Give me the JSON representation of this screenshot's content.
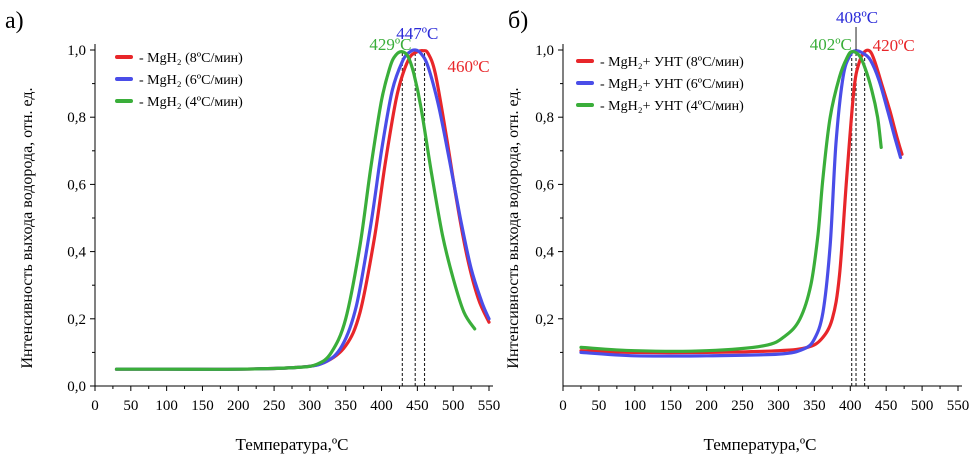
{
  "chart_data": [
    {
      "panel_label": "а)",
      "type": "line",
      "xlabel": "Температура,ºС",
      "ylabel": "Интенсивность выхода водорода, отн. ед.",
      "xlim": [
        0,
        550
      ],
      "ylim": [
        0,
        1.0
      ],
      "xticks": [
        "0",
        "50",
        "100",
        "150",
        "200",
        "250",
        "300",
        "350",
        "400",
        "450",
        "500",
        "550"
      ],
      "yticks": [
        "0,0",
        "0,2",
        "0,4",
        "0,6",
        "0,8",
        "1,0"
      ],
      "x_tick_values": [
        0,
        50,
        100,
        150,
        200,
        250,
        300,
        350,
        400,
        450,
        500,
        550
      ],
      "y_tick_values": [
        0,
        0.2,
        0.4,
        0.6,
        0.8,
        1.0
      ],
      "legend_position": "top-left",
      "series": [
        {
          "name": "-  MgH₂  (8ºС/мин)",
          "color": "#e8262a",
          "x": [
            30,
            100,
            200,
            280,
            320,
            350,
            370,
            390,
            405,
            420,
            430,
            440,
            450,
            458,
            465,
            475,
            490,
            505,
            520,
            535,
            550
          ],
          "y": [
            0.05,
            0.05,
            0.05,
            0.055,
            0.07,
            0.12,
            0.22,
            0.44,
            0.66,
            0.85,
            0.93,
            0.98,
            0.995,
            0.998,
            0.99,
            0.93,
            0.75,
            0.55,
            0.38,
            0.26,
            0.19
          ]
        },
        {
          "name": "-  MgH₂  (6ºС/мин)",
          "color": "#4a4de8",
          "x": [
            30,
            100,
            200,
            280,
            320,
            345,
            365,
            385,
            400,
            415,
            430,
            440,
            447,
            455,
            465,
            480,
            495,
            510,
            525,
            540,
            550
          ],
          "y": [
            0.05,
            0.05,
            0.05,
            0.055,
            0.07,
            0.12,
            0.24,
            0.48,
            0.7,
            0.88,
            0.97,
            0.995,
            1.0,
            0.99,
            0.95,
            0.83,
            0.67,
            0.5,
            0.35,
            0.25,
            0.2
          ]
        },
        {
          "name": "-  MgH₂  (4ºС/мин)",
          "color": "#3aae3a",
          "x": [
            30,
            100,
            200,
            280,
            310,
            330,
            350,
            370,
            385,
            400,
            412,
            420,
            429,
            437,
            445,
            455,
            470,
            485,
            500,
            515,
            530
          ],
          "y": [
            0.05,
            0.05,
            0.05,
            0.055,
            0.065,
            0.1,
            0.2,
            0.42,
            0.65,
            0.85,
            0.95,
            0.985,
            0.995,
            0.98,
            0.93,
            0.83,
            0.63,
            0.45,
            0.32,
            0.22,
            0.17
          ]
        }
      ],
      "annotations": [
        {
          "text": "429ºС",
          "color": "#3aae3a",
          "x": 429
        },
        {
          "text": "447ºС",
          "color": "#2b2bd8",
          "x": 447
        },
        {
          "text": "460ºС",
          "color": "#e8262a",
          "x": 460
        }
      ]
    },
    {
      "panel_label": "б)",
      "type": "line",
      "xlabel": "Температура,ºС",
      "ylabel": "Интенсивность выхода водорода, отн. ед.",
      "xlim": [
        0,
        550
      ],
      "ylim": [
        0,
        1.0
      ],
      "xticks": [
        "0",
        "50",
        "100",
        "150",
        "200",
        "250",
        "300",
        "350",
        "400",
        "450",
        "500",
        "550"
      ],
      "yticks": [
        "0,2",
        "0,4",
        "0,6",
        "0,8",
        "1,0"
      ],
      "x_tick_values": [
        0,
        50,
        100,
        150,
        200,
        250,
        300,
        350,
        400,
        450,
        500,
        550
      ],
      "y_tick_values": [
        0.2,
        0.4,
        0.6,
        0.8,
        1.0
      ],
      "legend_position": "top-left",
      "series": [
        {
          "name": "-  MgH₂+ УНТ (8ºС/мин)",
          "color": "#e8262a",
          "x": [
            25,
            100,
            200,
            300,
            340,
            360,
            375,
            385,
            395,
            405,
            412,
            420,
            428,
            435,
            445,
            455,
            465,
            472
          ],
          "y": [
            0.105,
            0.1,
            0.1,
            0.105,
            0.115,
            0.14,
            0.2,
            0.33,
            0.62,
            0.88,
            0.96,
            0.995,
            0.995,
            0.96,
            0.89,
            0.82,
            0.74,
            0.69
          ]
        },
        {
          "name": "-  MgH₂+ УНТ (6ºС/мин)",
          "color": "#4a4de8",
          "x": [
            25,
            100,
            200,
            300,
            335,
            350,
            362,
            372,
            380,
            390,
            400,
            408,
            418,
            428,
            440,
            452,
            462,
            470
          ],
          "y": [
            0.1,
            0.09,
            0.09,
            0.095,
            0.11,
            0.14,
            0.22,
            0.42,
            0.72,
            0.92,
            0.985,
            0.998,
            0.99,
            0.97,
            0.91,
            0.82,
            0.74,
            0.68
          ]
        },
        {
          "name": "-  MgH₂+ УНТ (4ºС/мин)",
          "color": "#3aae3a",
          "x": [
            25,
            100,
            200,
            280,
            310,
            330,
            345,
            355,
            362,
            372,
            385,
            395,
            402,
            412,
            420,
            430,
            438,
            443
          ],
          "y": [
            0.115,
            0.105,
            0.105,
            0.12,
            0.15,
            0.2,
            0.3,
            0.45,
            0.62,
            0.8,
            0.92,
            0.975,
            0.995,
            0.985,
            0.95,
            0.88,
            0.8,
            0.71
          ]
        }
      ],
      "annotations": [
        {
          "text": "402ºС",
          "color": "#3aae3a",
          "x": 402
        },
        {
          "text": "408ºС",
          "color": "#2b2bd8",
          "x": 408
        },
        {
          "text": "420ºС",
          "color": "#e8262a",
          "x": 420
        }
      ]
    }
  ]
}
